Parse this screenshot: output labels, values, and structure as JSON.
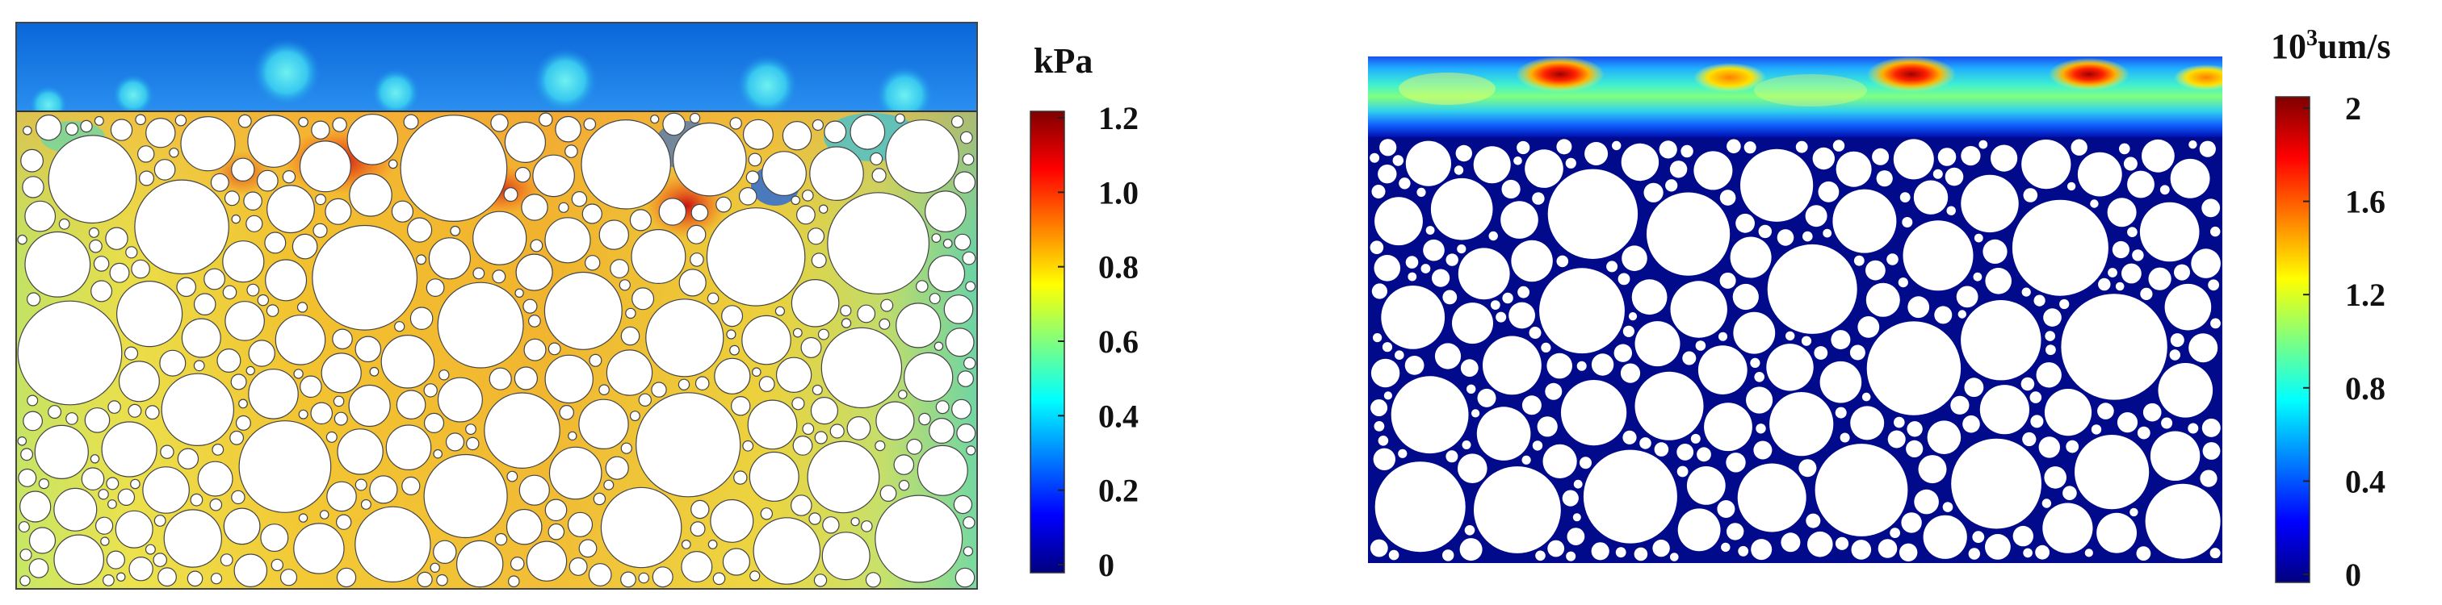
{
  "panels": [
    {
      "colorbar": {
        "unit": "kPa",
        "ticks": [
          "1.2",
          "1.0",
          "0.8",
          "0.6",
          "0.4",
          "0.2",
          "0"
        ]
      }
    },
    {
      "colorbar": {
        "unit_base": "10",
        "unit_exp": "3",
        "unit_rest": "um/s",
        "ticks": [
          "2",
          "1.6",
          "1.2",
          "0.8",
          "0.4",
          "0"
        ]
      }
    }
  ],
  "colormap": [
    "#00007f",
    "#0000ff",
    "#007fff",
    "#00ffff",
    "#7fff7f",
    "#ffff00",
    "#ff7f00",
    "#ff0000",
    "#7f0000"
  ]
}
